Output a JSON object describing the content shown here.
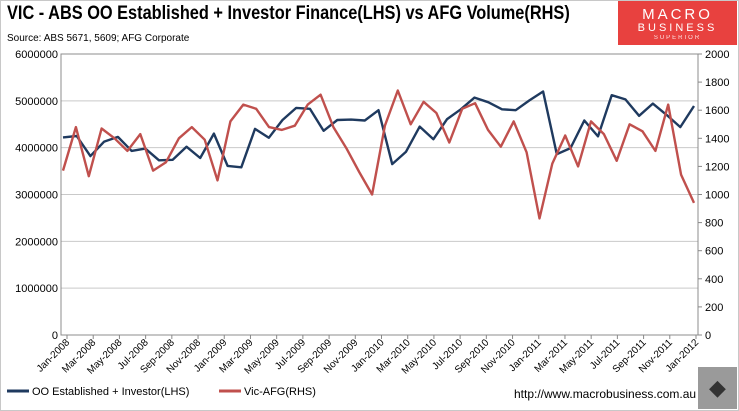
{
  "title": "VIC - ABS OO Established + Investor Finance(LHS) vs AFG Volume(RHS)",
  "source": "Source: ABS 5671, 5609; AFG Corporate",
  "logo": {
    "line1": "MACRO",
    "line2": "BUSINESS",
    "line3": "SUPERIOR"
  },
  "website": "http://www.macrobusiness.com.au",
  "chart_data": {
    "type": "line",
    "title": "VIC - ABS OO Established + Investor Finance(LHS) vs AFG Volume(RHS)",
    "x_tick_labels": [
      "Jan-2008",
      "Mar-2008",
      "May-2008",
      "Jul-2008",
      "Sep-2008",
      "Nov-2008",
      "Jan-2009",
      "Mar-2009",
      "May-2009",
      "Jul-2009",
      "Sep-2009",
      "Nov-2009",
      "Jan-2010",
      "Mar-2010",
      "May-2010",
      "Jul-2010",
      "Sep-2010",
      "Nov-2010",
      "Jan-2011",
      "Mar-2011",
      "May-2011",
      "Jul-2011",
      "Sep-2011",
      "Nov-2011",
      "Jan-2012"
    ],
    "y_left": {
      "min": 0,
      "max": 6000000,
      "step": 1000000,
      "ticks": [
        "0",
        "1000000",
        "2000000",
        "3000000",
        "4000000",
        "5000000",
        "6000000"
      ]
    },
    "y_right": {
      "min": 0,
      "max": 2000,
      "step": 200,
      "ticks": [
        "0",
        "200",
        "400",
        "600",
        "800",
        "1000",
        "1200",
        "1400",
        "1600",
        "1800",
        "2000"
      ]
    },
    "grid": true,
    "legend_position": "bottom-left",
    "series": [
      {
        "name": "OO Established + Investor(LHS)",
        "axis": "left",
        "color": "#1f3a5f",
        "values": [
          4220000,
          4250000,
          3820000,
          4130000,
          4230000,
          3930000,
          3980000,
          3730000,
          3740000,
          4020000,
          3780000,
          4300000,
          3610000,
          3580000,
          4400000,
          4210000,
          4590000,
          4850000,
          4830000,
          4360000,
          4590000,
          4600000,
          4580000,
          4800000,
          3650000,
          3910000,
          4450000,
          4180000,
          4610000,
          4820000,
          5070000,
          4970000,
          4820000,
          4800000,
          5010000,
          5200000,
          3860000,
          3990000,
          4580000,
          4240000,
          5120000,
          5030000,
          4680000,
          4940000,
          4700000,
          4440000,
          4890000
        ]
      },
      {
        "name": "Vic-AFG(RHS)",
        "axis": "right",
        "color": "#c0504d",
        "values": [
          1170,
          1480,
          1130,
          1470,
          1400,
          1310,
          1430,
          1170,
          1230,
          1400,
          1480,
          1390,
          1100,
          1520,
          1640,
          1610,
          1480,
          1460,
          1490,
          1640,
          1710,
          1480,
          1330,
          1160,
          1000,
          1490,
          1740,
          1500,
          1660,
          1580,
          1370,
          1610,
          1650,
          1460,
          1340,
          1520,
          1300,
          830,
          1220,
          1420,
          1200,
          1520,
          1430,
          1240,
          1500,
          1450,
          1310,
          1640,
          1140,
          940
        ]
      }
    ]
  }
}
